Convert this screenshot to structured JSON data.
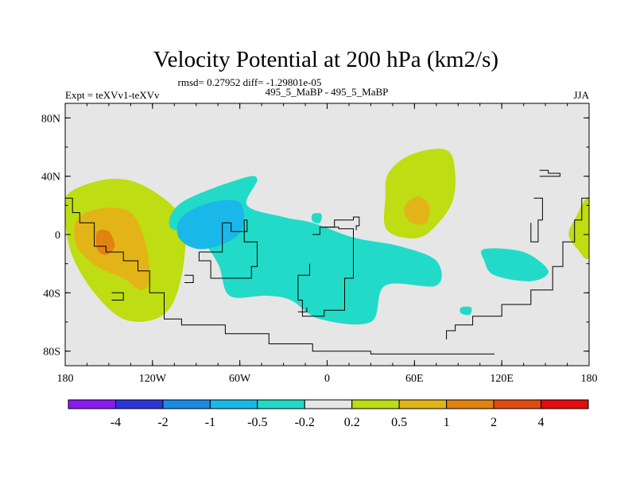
{
  "chart_data": {
    "type": "heatmap",
    "title": "Velocity Potential at 200 hPa (km2/s)",
    "stats_text": "rmsd= 0.27952 diff= -1.29801e-05",
    "left_label": "Expt = teXVv1-teXVv",
    "center_label": "495_5_MaBP - 495_5_MaBP",
    "season": "JJA",
    "x_range": [
      -180,
      180
    ],
    "y_range": [
      -90,
      90
    ],
    "x_ticks": [
      {
        "value": -180,
        "label": "180"
      },
      {
        "value": -120,
        "label": "120W"
      },
      {
        "value": -60,
        "label": "60W"
      },
      {
        "value": 0,
        "label": "0"
      },
      {
        "value": 60,
        "label": "60E"
      },
      {
        "value": 120,
        "label": "120E"
      },
      {
        "value": 180,
        "label": "180"
      }
    ],
    "y_ticks": [
      {
        "value": 80,
        "label": "80N"
      },
      {
        "value": 40,
        "label": "40N"
      },
      {
        "value": 0,
        "label": "0"
      },
      {
        "value": -40,
        "label": "40S"
      },
      {
        "value": -80,
        "label": "80S"
      }
    ],
    "colorbar": {
      "colors": [
        "#8c1aee",
        "#2b35d8",
        "#1a8be8",
        "#1ab8e8",
        "#21dbc8",
        "#e6e6e6",
        "#bedd12",
        "#e3b418",
        "#e2820f",
        "#e24a12",
        "#e60c0c"
      ],
      "labels": [
        "-4",
        "-2",
        "-1",
        "-0.5",
        "-0.2",
        "0.2",
        "0.5",
        "1",
        "2",
        "4"
      ]
    },
    "background_color": "#e6e6e6",
    "regions": [
      {
        "name": "positive-anomaly-east-pacific",
        "level": "0.2 to 0.5",
        "color": "#bedd12",
        "points": [
          [
            -178,
            28
          ],
          [
            -150,
            38
          ],
          [
            -125,
            33
          ],
          [
            -100,
            12
          ],
          [
            -98,
            -15
          ],
          [
            -105,
            -45
          ],
          [
            -118,
            -58
          ],
          [
            -140,
            -58
          ],
          [
            -160,
            -40
          ],
          [
            -175,
            -15
          ],
          [
            -180,
            10
          ]
        ]
      },
      {
        "name": "positive-anomaly-east-pacific-core",
        "level": "0.5 to 1",
        "color": "#e3b418",
        "points": [
          [
            -172,
            10
          ],
          [
            -155,
            18
          ],
          [
            -135,
            15
          ],
          [
            -125,
            -5
          ],
          [
            -122,
            -30
          ],
          [
            -128,
            -38
          ],
          [
            -140,
            -30
          ],
          [
            -158,
            -22
          ],
          [
            -172,
            -8
          ]
        ]
      },
      {
        "name": "positive-anomaly-east-pacific-max",
        "level": "1 to 2",
        "color": "#e2820f",
        "points": [
          [
            -158,
            2
          ],
          [
            -150,
            2
          ],
          [
            -146,
            -8
          ],
          [
            -152,
            -14
          ],
          [
            -158,
            -10
          ]
        ]
      },
      {
        "name": "negative-anomaly-atlantic-africa",
        "level": "-0.5 to -0.2",
        "color": "#21dbc8",
        "points": [
          [
            -100,
            22
          ],
          [
            -60,
            38
          ],
          [
            -48,
            38
          ],
          [
            -55,
            20
          ],
          [
            -30,
            12
          ],
          [
            -10,
            8
          ],
          [
            18,
            -2
          ],
          [
            50,
            -8
          ],
          [
            75,
            -18
          ],
          [
            75,
            -35
          ],
          [
            40,
            -35
          ],
          [
            30,
            -60
          ],
          [
            -5,
            -58
          ],
          [
            -25,
            -45
          ],
          [
            -42,
            -42
          ],
          [
            -67,
            -42
          ],
          [
            -75,
            -20
          ],
          [
            -90,
            0
          ],
          [
            -108,
            5
          ]
        ]
      },
      {
        "name": "negative-anomaly-south-america-core",
        "level": "-1 to -0.5",
        "color": "#1ab8e8",
        "points": [
          [
            -100,
            12
          ],
          [
            -80,
            22
          ],
          [
            -60,
            22
          ],
          [
            -58,
            5
          ],
          [
            -68,
            -5
          ],
          [
            -88,
            -10
          ],
          [
            -102,
            -2
          ]
        ]
      },
      {
        "name": "negative-anomaly-indian-ocean",
        "level": "-0.5 to -0.2",
        "color": "#21dbc8",
        "points": [
          [
            108,
            -10
          ],
          [
            135,
            -12
          ],
          [
            152,
            -25
          ],
          [
            140,
            -32
          ],
          [
            115,
            -28
          ],
          [
            108,
            -18
          ]
        ]
      },
      {
        "name": "negative-anomaly-arabian-sea",
        "level": "-0.5 to -0.2",
        "color": "#21dbc8",
        "points": [
          [
            -10,
            14
          ],
          [
            -4,
            14
          ],
          [
            -5,
            8
          ],
          [
            -10,
            9
          ]
        ]
      },
      {
        "name": "negative-anomaly-south-indian-blip",
        "level": "-0.5 to -0.2",
        "color": "#21dbc8",
        "points": [
          [
            92,
            -50
          ],
          [
            99,
            -50
          ],
          [
            98,
            -55
          ],
          [
            92,
            -54
          ]
        ]
      },
      {
        "name": "positive-anomaly-asia",
        "level": "0.2 to 0.5",
        "color": "#bedd12",
        "points": [
          [
            42,
            42
          ],
          [
            58,
            55
          ],
          [
            82,
            58
          ],
          [
            88,
            42
          ],
          [
            85,
            20
          ],
          [
            68,
            0
          ],
          [
            52,
            -2
          ],
          [
            40,
            5
          ],
          [
            40,
            25
          ]
        ]
      },
      {
        "name": "positive-anomaly-asia-core",
        "level": "0.5 to 1",
        "color": "#e3b418",
        "points": [
          [
            55,
            22
          ],
          [
            63,
            26
          ],
          [
            70,
            20
          ],
          [
            68,
            8
          ],
          [
            58,
            8
          ],
          [
            53,
            15
          ]
        ]
      },
      {
        "name": "positive-anomaly-dateline",
        "level": "0.2 to 0.5",
        "color": "#bedd12",
        "points": [
          [
            170,
            10
          ],
          [
            180,
            25
          ],
          [
            180,
            -15
          ],
          [
            172,
            -10
          ],
          [
            166,
            0
          ]
        ]
      }
    ],
    "coastlines": [
      [
        [
          -180,
          25
        ],
        [
          -175,
          15
        ],
        [
          -170,
          8
        ],
        [
          -160,
          -8
        ],
        [
          -152,
          -12
        ],
        [
          -140,
          -18
        ],
        [
          -130,
          -25
        ],
        [
          -122,
          -40
        ],
        [
          -112,
          -58
        ],
        [
          -100,
          -62
        ],
        [
          -70,
          -68
        ],
        [
          -40,
          -75
        ],
        [
          -10,
          -80
        ],
        [
          30,
          -82
        ],
        [
          80,
          -82
        ],
        [
          115,
          -82
        ]
      ],
      [
        [
          -88,
          -12
        ],
        [
          -80,
          -12
        ],
        [
          -72,
          -8
        ],
        [
          -72,
          8
        ],
        [
          -66,
          2
        ],
        [
          -55,
          10
        ],
        [
          -57,
          -5
        ],
        [
          -48,
          -22
        ],
        [
          -52,
          -30
        ],
        [
          -70,
          -30
        ],
        [
          -80,
          -18
        ],
        [
          -88,
          -12
        ]
      ],
      [
        [
          -10,
          0
        ],
        [
          -5,
          5
        ],
        [
          8,
          4
        ],
        [
          18,
          0
        ],
        [
          18,
          -30
        ],
        [
          12,
          -52
        ],
        [
          -2,
          -56
        ],
        [
          -17,
          -45
        ],
        [
          -20,
          -28
        ],
        [
          -12,
          -20
        ]
      ],
      [
        [
          -2,
          5
        ],
        [
          0,
          5
        ],
        [
          5,
          10
        ],
        [
          18,
          12
        ],
        [
          22,
          6
        ],
        [
          20,
          3
        ]
      ],
      [
        [
          146,
          40
        ],
        [
          158,
          40
        ],
        [
          160,
          42
        ],
        [
          152,
          44
        ],
        [
          146,
          44
        ]
      ],
      [
        [
          142,
          25
        ],
        [
          148,
          25
        ],
        [
          148,
          10
        ],
        [
          145,
          -5
        ],
        [
          140,
          8
        ]
      ],
      [
        [
          180,
          25
        ],
        [
          175,
          10
        ],
        [
          170,
          -5
        ],
        [
          162,
          -22
        ],
        [
          155,
          -38
        ],
        [
          140,
          -48
        ],
        [
          120,
          -56
        ],
        [
          100,
          -62
        ],
        [
          88,
          -66
        ],
        [
          82,
          -72
        ]
      ],
      [
        [
          -148,
          -40
        ],
        [
          -140,
          -40
        ],
        [
          -140,
          -45
        ],
        [
          -148,
          -45
        ]
      ],
      [
        [
          -98,
          -28
        ],
        [
          -92,
          -28
        ],
        [
          -92,
          -33
        ],
        [
          -98,
          -33
        ]
      ],
      [
        [
          -20,
          -53
        ],
        [
          -14,
          -53
        ],
        [
          -14,
          -50
        ]
      ]
    ]
  }
}
